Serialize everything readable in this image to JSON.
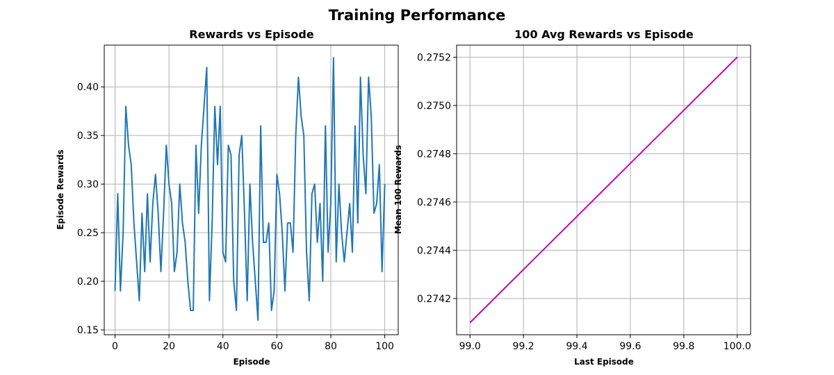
{
  "figure": {
    "suptitle": "Training Performance"
  },
  "chart_data": [
    {
      "type": "line",
      "title": "Rewards vs Episode",
      "xlabel": "Episode",
      "ylabel": "Episode Rewards",
      "xlim": [
        -4,
        105
      ],
      "ylim": [
        0.145,
        0.443
      ],
      "xticks": [
        0,
        20,
        40,
        60,
        80,
        100
      ],
      "xtick_labels": [
        "0",
        "20",
        "40",
        "60",
        "80",
        "100"
      ],
      "yticks": [
        0.15,
        0.2,
        0.25,
        0.3,
        0.35,
        0.4
      ],
      "ytick_labels": [
        "0.15",
        "0.20",
        "0.25",
        "0.30",
        "0.35",
        "0.40"
      ],
      "grid": true,
      "color": "#1f77b4",
      "x": [
        0,
        1,
        2,
        3,
        4,
        5,
        6,
        7,
        8,
        9,
        10,
        11,
        12,
        13,
        14,
        15,
        16,
        17,
        18,
        19,
        20,
        21,
        22,
        23,
        24,
        25,
        26,
        27,
        28,
        29,
        30,
        31,
        32,
        33,
        34,
        35,
        36,
        37,
        38,
        39,
        40,
        41,
        42,
        43,
        44,
        45,
        46,
        47,
        48,
        49,
        50,
        51,
        52,
        53,
        54,
        55,
        56,
        57,
        58,
        59,
        60,
        61,
        62,
        63,
        64,
        65,
        66,
        67,
        68,
        69,
        70,
        71,
        72,
        73,
        74,
        75,
        76,
        77,
        78,
        79,
        80,
        81,
        82,
        83,
        84,
        85,
        86,
        87,
        88,
        89,
        90,
        91,
        92,
        93,
        94,
        95,
        96,
        97,
        98,
        99,
        100
      ],
      "y": [
        0.19,
        0.29,
        0.19,
        0.25,
        0.38,
        0.34,
        0.32,
        0.26,
        0.22,
        0.18,
        0.27,
        0.21,
        0.29,
        0.22,
        0.28,
        0.31,
        0.27,
        0.21,
        0.27,
        0.34,
        0.3,
        0.28,
        0.21,
        0.23,
        0.3,
        0.26,
        0.24,
        0.2,
        0.17,
        0.17,
        0.34,
        0.27,
        0.34,
        0.38,
        0.42,
        0.18,
        0.26,
        0.38,
        0.32,
        0.38,
        0.23,
        0.22,
        0.34,
        0.33,
        0.2,
        0.17,
        0.33,
        0.35,
        0.27,
        0.18,
        0.3,
        0.24,
        0.2,
        0.16,
        0.36,
        0.24,
        0.24,
        0.26,
        0.17,
        0.19,
        0.31,
        0.29,
        0.25,
        0.19,
        0.26,
        0.26,
        0.23,
        0.35,
        0.41,
        0.37,
        0.35,
        0.23,
        0.18,
        0.29,
        0.3,
        0.24,
        0.28,
        0.2,
        0.36,
        0.23,
        0.28,
        0.43,
        0.22,
        0.3,
        0.25,
        0.22,
        0.25,
        0.28,
        0.23,
        0.36,
        0.26,
        0.41,
        0.33,
        0.29,
        0.41,
        0.37,
        0.27,
        0.28,
        0.32,
        0.21,
        0.3
      ]
    },
    {
      "type": "line",
      "title": "100 Avg Rewards vs Episode",
      "xlabel": "Last Episode",
      "ylabel": "Mean 100 Rewards",
      "xlim": [
        98.95,
        100.05
      ],
      "ylim": [
        0.27405,
        0.27525
      ],
      "xticks": [
        99.0,
        99.2,
        99.4,
        99.6,
        99.8,
        100.0
      ],
      "xtick_labels": [
        "99.0",
        "99.2",
        "99.4",
        "99.6",
        "99.8",
        "100.0"
      ],
      "yticks": [
        0.2742,
        0.2744,
        0.2746,
        0.2748,
        0.275,
        0.2752
      ],
      "ytick_labels": [
        "0.2742",
        "0.2744",
        "0.2746",
        "0.2748",
        "0.2750",
        "0.2752"
      ],
      "grid": true,
      "color": "#bf00bf",
      "x": [
        99,
        100
      ],
      "y": [
        0.2741,
        0.2752
      ]
    }
  ]
}
